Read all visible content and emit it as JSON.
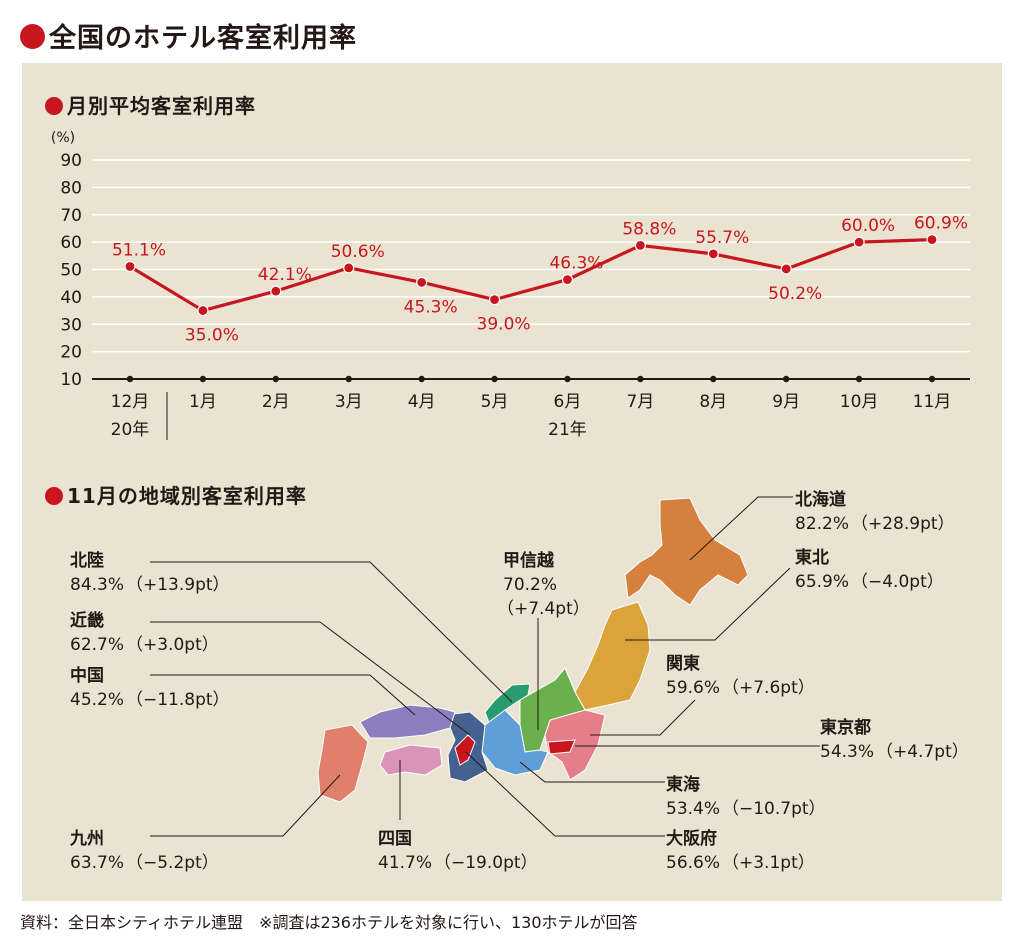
{
  "title": "全国のホテル客室利用率",
  "source": "資料：全日本シティホテル連盟　※調査は236ホテルを対象に行い、130ホテルが回答",
  "chart_data": [
    {
      "type": "line",
      "title": "月別平均客室利用率",
      "ylabel": "(%)",
      "ylim": [
        10,
        90
      ],
      "yticks": [
        "10",
        "20",
        "30",
        "40",
        "50",
        "60",
        "70",
        "80",
        "90"
      ],
      "categories": [
        "12月",
        "1月",
        "2月",
        "3月",
        "4月",
        "5月",
        "6月",
        "7月",
        "8月",
        "9月",
        "10月",
        "11月"
      ],
      "year_labels": [
        "20年",
        "21年"
      ],
      "values": [
        51.1,
        35.0,
        42.1,
        50.6,
        45.3,
        39.0,
        46.3,
        58.8,
        55.7,
        50.2,
        60.0,
        60.9
      ],
      "value_labels": [
        "51.1%",
        "35.0%",
        "42.1%",
        "50.6%",
        "45.3%",
        "39.0%",
        "46.3%",
        "58.8%",
        "55.7%",
        "50.2%",
        "60.0%",
        "60.9%"
      ],
      "grid": true,
      "line_color": "#c8161e"
    },
    {
      "type": "map",
      "title": "11月の地域別客室利用率",
      "regions": [
        {
          "name": "北海道",
          "value": "82.2%",
          "change": "（+28.9pt）",
          "color": "#d6803e"
        },
        {
          "name": "東北",
          "value": "65.9%",
          "change": "（−4.0pt）",
          "color": "#dba43b"
        },
        {
          "name": "関東",
          "value": "59.6%",
          "change": "（+7.6pt）",
          "color": "#dba43b"
        },
        {
          "name": "東京都",
          "value": "54.3%",
          "change": "（+4.7pt）",
          "color": "#c8161e"
        },
        {
          "name": "東海",
          "value": "53.4%",
          "change": "（−10.7pt）",
          "color": "#5f9ed6"
        },
        {
          "name": "大阪府",
          "value": "56.6%",
          "change": "（+3.1pt）",
          "color": "#c8161e"
        },
        {
          "name": "四国",
          "value": "41.7%",
          "change": "（−19.0pt）",
          "color": "#d995b9"
        },
        {
          "name": "九州",
          "value": "63.7%",
          "change": "（−5.2pt）",
          "color": "#e0806a"
        },
        {
          "name": "甲信越",
          "value": "70.2%",
          "change": "（+7.4pt）",
          "color": "#6ab04c"
        },
        {
          "name": "北陸",
          "value": "84.3%",
          "change": "（+13.9pt）",
          "color": "#2a9a6f"
        },
        {
          "name": "近畿",
          "value": "62.7%",
          "change": "（+3.0pt）",
          "color": "#44618f"
        },
        {
          "name": "中国",
          "value": "45.2%",
          "change": "（−11.8pt）",
          "color": "#8b7fbf"
        }
      ]
    }
  ]
}
